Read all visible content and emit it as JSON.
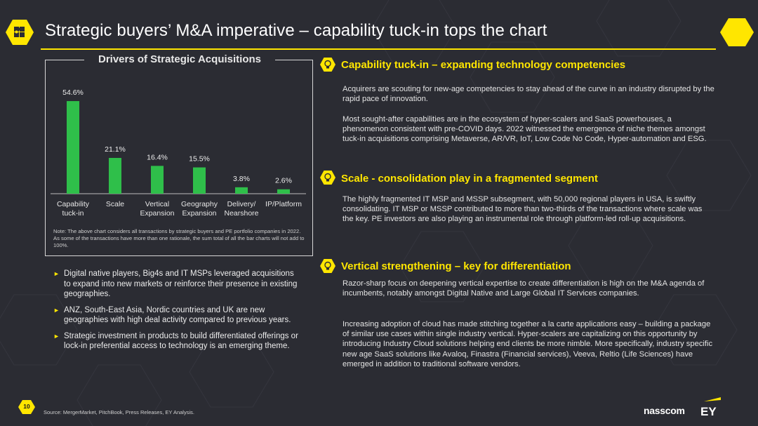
{
  "header": {
    "title": "Strategic buyers’ M&A imperative – capability tuck-in tops the chart"
  },
  "colors": {
    "accent": "#ffe600",
    "bar": "#2fbf4a",
    "background": "#2b2c33"
  },
  "chart_data": {
    "type": "bar",
    "title": "Drivers of Strategic Acquisitions",
    "categories": [
      [
        "Capability",
        "tuck-in"
      ],
      [
        "Scale"
      ],
      [
        "Vertical",
        "Expansion"
      ],
      [
        "Geography",
        "Expansion"
      ],
      [
        "Delivery/",
        "Nearshore"
      ],
      [
        "IP/Platform"
      ]
    ],
    "values": [
      54.6,
      21.1,
      16.4,
      15.5,
      3.8,
      2.6
    ],
    "value_labels": [
      "54.6%",
      "21.1%",
      "16.4%",
      "15.5%",
      "3.8%",
      "2.6%"
    ],
    "ylim": [
      0,
      60
    ]
  },
  "chart_note": "Note: The above chart considers all transactions by strategic buyers and PE portfolio companies in 2022. As some of the transactions have more than one rationale, the sum total of all the bar charts will not add to 100%.",
  "bullets": [
    "Digital native players, Big4s and IT MSPs leveraged acquisitions to expand into new markets or reinforce their presence in existing geographies.",
    "ANZ, South-East Asia, Nordic countries and UK are new geographies with high deal activity compared to previous years.",
    "Strategic investment in products to build differentiated offerings or lock-in preferential access to technology is an emerging theme."
  ],
  "sections": [
    {
      "heading": "Capability tuck-in – expanding technology competencies",
      "paragraphs": [
        "Acquirers are scouting for new-age competencies to stay ahead of the curve in an industry disrupted by the rapid pace of innovation.",
        "Most sought-after capabilities are in the ecosystem of hyper-scalers and SaaS powerhouses, a phenomenon consistent with pre-COVID days. 2022 witnessed the emergence of niche themes amongst tuck-in acquisitions comprising Metaverse, AR/VR, IoT, Low Code No Code, Hyper-automation and ESG."
      ]
    },
    {
      "heading": "Scale - consolidation play in a fragmented segment",
      "paragraphs": [
        "The highly fragmented IT MSP and MSSP subsegment, with 50,000 regional players in USA, is swiftly consolidating. IT MSP or MSSP contributed to more than two-thirds of the transactions where scale was the key. PE investors are also playing an instrumental role through platform-led roll-up acquisitions."
      ]
    },
    {
      "heading": "Vertical strengthening – key for differentiation",
      "paragraphs": [
        "Razor-sharp focus on deepening vertical expertise to create differentiation is high on the M&A agenda of incumbents, notably amongst Digital Native and Large Global IT Services companies.",
        "Increasing adoption of cloud has made stitching together a la carte applications easy – building a package of similar use cases within single industry vertical. Hyper-scalers are capitalizing on this opportunity by introducing Industry Cloud solutions helping end clients be more nimble. More specifically, industry specific new age SaaS solutions like Avaloq, Finastra (Financial services), Veeva, Reltio (Life Sciences) have emerged in addition to traditional software vendors."
      ]
    }
  ],
  "footer": {
    "page_number": "10",
    "source": "Source: MergerMarket, PitchBook, Press Releases, EY Analysis.",
    "brand_nasscom": "nasscom",
    "brand_ey": "EY"
  }
}
